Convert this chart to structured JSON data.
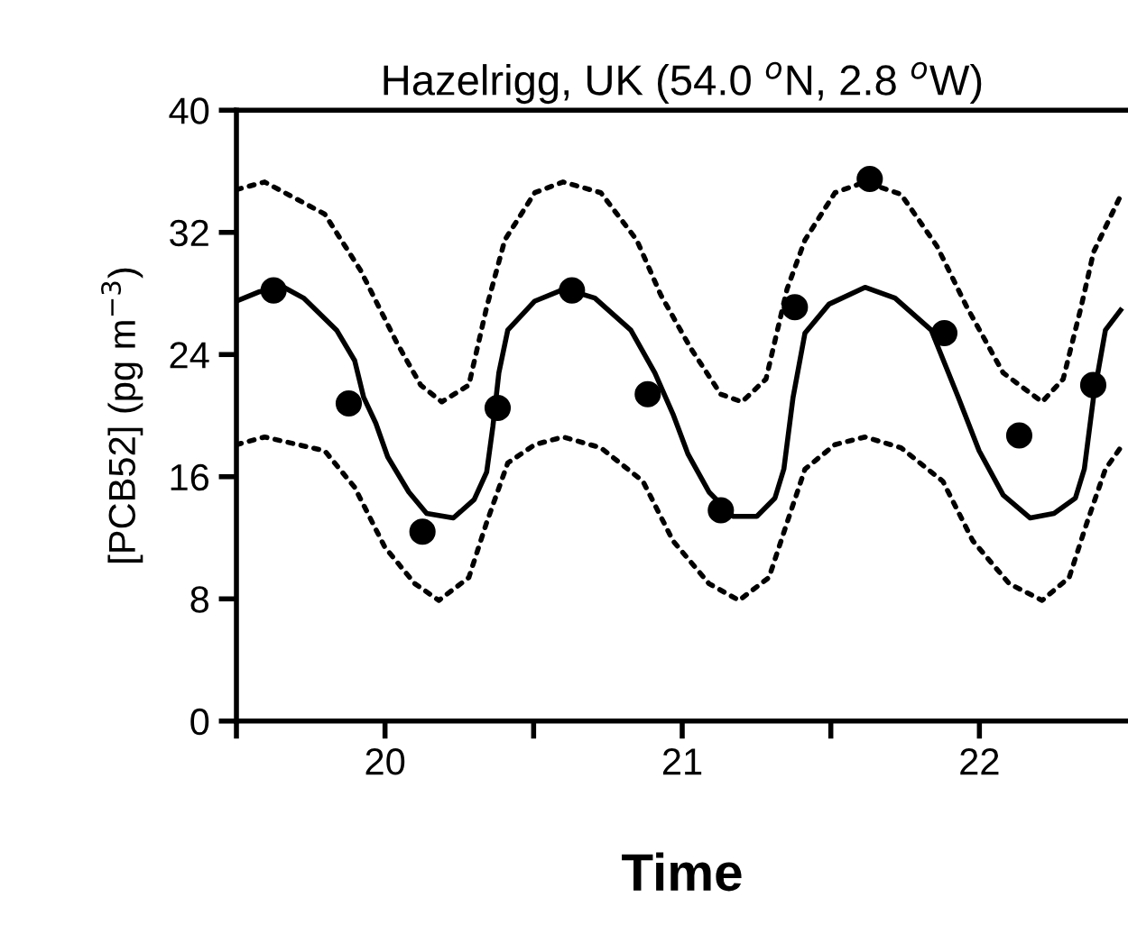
{
  "chart_data": {
    "type": "line",
    "title": "Hazelrigg, UK (54.0 $^{o}$N, 2.8 $^{o}$W)",
    "xlabel": "Time",
    "ylabel": "[PCB52] (pg m$^{−3}$)",
    "xlim": [
      19.5,
      22.5
    ],
    "xticks": [
      {
        "value": 19.5,
        "label": null
      },
      20,
      {
        "value": 20.5,
        "label": null
      },
      21,
      {
        "value": 21.5,
        "label": null
      },
      22
    ],
    "ylim": [
      0,
      40
    ],
    "yticks": [
      0,
      8,
      16,
      24,
      32,
      40
    ],
    "grid": false,
    "legend": false,
    "series": [
      {
        "color": "#000000",
        "marker": "none",
        "line_style": "dotted",
        "x": [
          19.5,
          19.595,
          19.797,
          19.918,
          20.039,
          20.12,
          20.191,
          20.282,
          20.342,
          20.403,
          20.504,
          20.599,
          20.726,
          20.847,
          20.928,
          21.029,
          21.13,
          21.201,
          21.282,
          21.353,
          21.413,
          21.514,
          21.615,
          21.736,
          21.857,
          21.958,
          22.08,
          22.211,
          22.282,
          22.342,
          22.384,
          22.475
        ],
        "values": [
          34.8,
          35.3,
          33.2,
          29.5,
          24.8,
          22.0,
          20.9,
          22.0,
          27.1,
          31.5,
          34.6,
          35.3,
          34.6,
          31.5,
          27.9,
          24.4,
          21.4,
          20.9,
          22.4,
          28.3,
          31.5,
          34.6,
          35.3,
          34.5,
          31.1,
          27.1,
          22.8,
          20.9,
          22.4,
          27.1,
          30.7,
          34.4
        ]
      },
      {
        "color": "#000000",
        "marker": "none",
        "line_style": "dotted",
        "x": [
          19.5,
          19.595,
          19.797,
          19.898,
          19.999,
          20.1,
          20.181,
          20.282,
          20.342,
          20.413,
          20.504,
          20.599,
          20.726,
          20.868,
          20.969,
          21.09,
          21.191,
          21.292,
          21.353,
          21.413,
          21.514,
          21.615,
          21.736,
          21.877,
          21.978,
          22.1,
          22.211,
          22.302,
          22.362,
          22.424,
          22.475
        ],
        "values": [
          18.1,
          18.6,
          17.7,
          15.3,
          11.4,
          9.0,
          7.9,
          9.4,
          13.0,
          16.9,
          18.1,
          18.6,
          17.9,
          15.7,
          11.8,
          9.0,
          7.9,
          9.4,
          13.0,
          16.5,
          18.1,
          18.6,
          17.9,
          15.7,
          11.8,
          9.0,
          7.9,
          9.4,
          13.0,
          16.5,
          17.9
        ]
      },
      {
        "color": "#000000",
        "marker": "none",
        "line_style": "solid",
        "x": [
          19.5,
          19.575,
          19.66,
          19.726,
          19.837,
          19.898,
          19.928,
          19.969,
          20.009,
          20.08,
          20.14,
          20.23,
          20.3,
          20.342,
          20.363,
          20.383,
          20.413,
          20.504,
          20.605,
          20.706,
          20.827,
          20.908,
          20.969,
          21.019,
          21.09,
          21.171,
          21.251,
          21.312,
          21.342,
          21.373,
          21.413,
          21.494,
          21.615,
          21.716,
          21.838,
          21.929,
          21.999,
          22.08,
          22.171,
          22.251,
          22.323,
          22.353,
          22.384,
          22.424,
          22.475
        ],
        "values": [
          27.5,
          28.1,
          28.4,
          27.7,
          25.6,
          23.6,
          21.2,
          19.5,
          17.3,
          15.0,
          13.6,
          13.3,
          14.5,
          16.3,
          19.3,
          22.8,
          25.6,
          27.5,
          28.3,
          27.7,
          25.6,
          22.8,
          20.1,
          17.5,
          15.0,
          13.4,
          13.4,
          14.6,
          16.5,
          21.2,
          25.4,
          27.3,
          28.4,
          27.7,
          25.6,
          21.2,
          17.7,
          14.8,
          13.3,
          13.6,
          14.6,
          16.5,
          21.2,
          25.6,
          26.9
        ]
      },
      {
        "type": "scatter",
        "color": "#000000",
        "marker": "circle",
        "x": [
          19.625,
          19.878,
          20.126,
          20.379,
          20.629,
          20.884,
          21.13,
          21.379,
          21.631,
          21.882,
          22.134,
          22.383
        ],
        "values": [
          28.2,
          20.8,
          12.4,
          20.5,
          28.2,
          21.4,
          13.8,
          27.1,
          35.5,
          25.4,
          18.7,
          22.0
        ]
      }
    ]
  }
}
